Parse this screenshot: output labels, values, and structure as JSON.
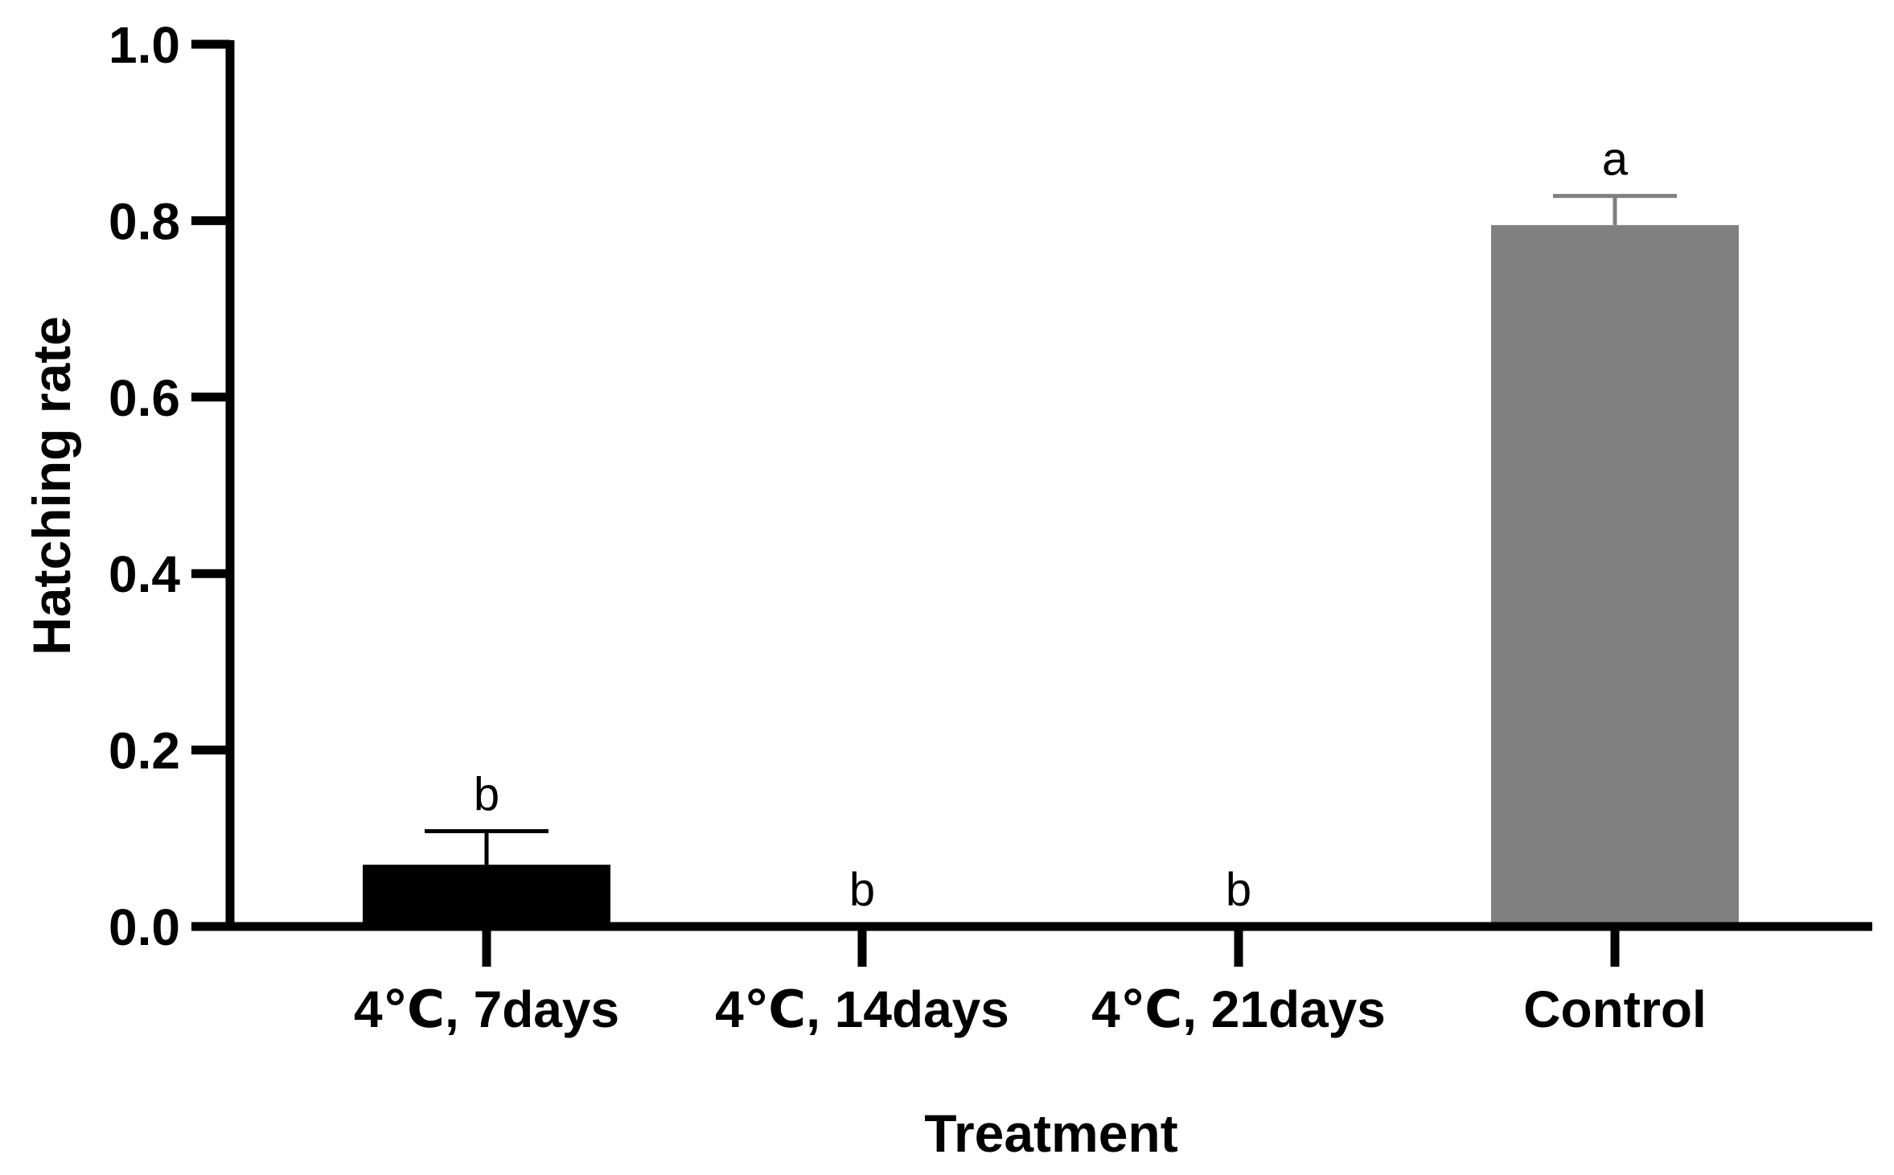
{
  "chart_data": {
    "type": "bar",
    "title": "",
    "xlabel": "Treatment",
    "ylabel": "Hatching rate",
    "ylim": [
      0,
      1.0
    ],
    "yticks": [
      "0.0",
      "0.2",
      "0.4",
      "0.6",
      "0.8",
      "1.0"
    ],
    "ytick_values": [
      0.0,
      0.2,
      0.4,
      0.6,
      0.8,
      1.0
    ],
    "categories": [
      "4℃, 7days",
      "4℃, 14days",
      "4℃, 21days",
      "Control"
    ],
    "values": [
      0.07,
      0.0,
      0.0,
      0.795
    ],
    "error_upper": [
      0.108,
      0.0,
      0.0,
      0.828
    ],
    "significance_letters": [
      "b",
      "b",
      "b",
      "a"
    ],
    "bar_colors": [
      "#000000",
      "#000000",
      "#000000",
      "#808080"
    ],
    "grid": false,
    "legend": "none"
  }
}
